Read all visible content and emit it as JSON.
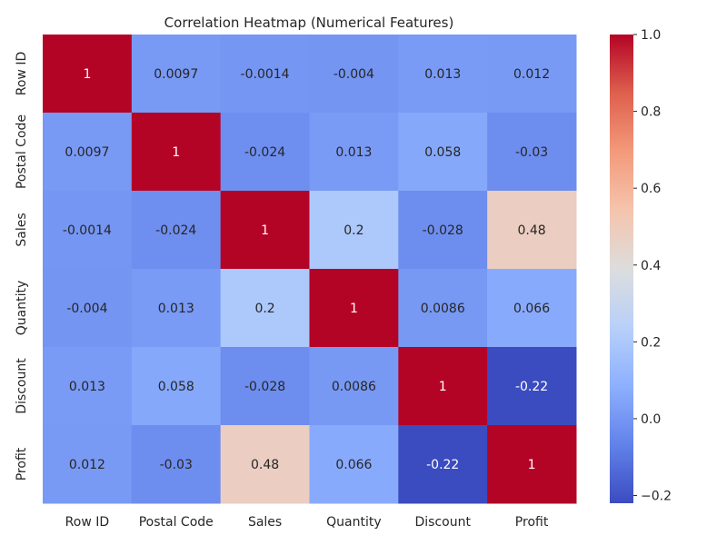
{
  "chart_data": {
    "type": "heatmap",
    "title": "Correlation Heatmap (Numerical Features)",
    "x_categories": [
      "Row ID",
      "Postal Code",
      "Sales",
      "Quantity",
      "Discount",
      "Profit"
    ],
    "y_categories": [
      "Row ID",
      "Postal Code",
      "Sales",
      "Quantity",
      "Discount",
      "Profit"
    ],
    "values": [
      [
        1,
        0.0097,
        -0.0014,
        -0.004,
        0.013,
        0.012
      ],
      [
        0.0097,
        1,
        -0.024,
        0.013,
        0.058,
        -0.03
      ],
      [
        -0.0014,
        -0.024,
        1,
        0.2,
        -0.028,
        0.48
      ],
      [
        -0.004,
        0.013,
        0.2,
        1,
        0.0086,
        0.066
      ],
      [
        0.013,
        0.058,
        -0.028,
        0.0086,
        1,
        -0.22
      ],
      [
        0.012,
        -0.03,
        0.48,
        0.066,
        -0.22,
        1
      ]
    ],
    "labels": [
      [
        "1",
        "0.0097",
        "-0.0014",
        "-0.004",
        "0.013",
        "0.012"
      ],
      [
        "0.0097",
        "1",
        "-0.024",
        "0.013",
        "0.058",
        "-0.03"
      ],
      [
        "-0.0014",
        "-0.024",
        "1",
        "0.2",
        "-0.028",
        "0.48"
      ],
      [
        "-0.004",
        "0.013",
        "0.2",
        "1",
        "0.0086",
        "0.066"
      ],
      [
        "0.013",
        "0.058",
        "-0.028",
        "0.0086",
        "1",
        "-0.22"
      ],
      [
        "0.012",
        "-0.03",
        "0.48",
        "0.066",
        "-0.22",
        "1"
      ]
    ],
    "colormap": "coolwarm",
    "color_range": [
      -0.22,
      1
    ],
    "colorbar_ticks": [
      "1.0",
      "0.8",
      "0.6",
      "0.4",
      "0.2",
      "0.0",
      "−0.2"
    ],
    "colorbar_tick_values": [
      1.0,
      0.8,
      0.6,
      0.4,
      0.2,
      0.0,
      -0.2
    ],
    "colorbar_position": "right",
    "annotation_colors": {
      "dark": "#262626",
      "light": "#ffffff"
    }
  }
}
